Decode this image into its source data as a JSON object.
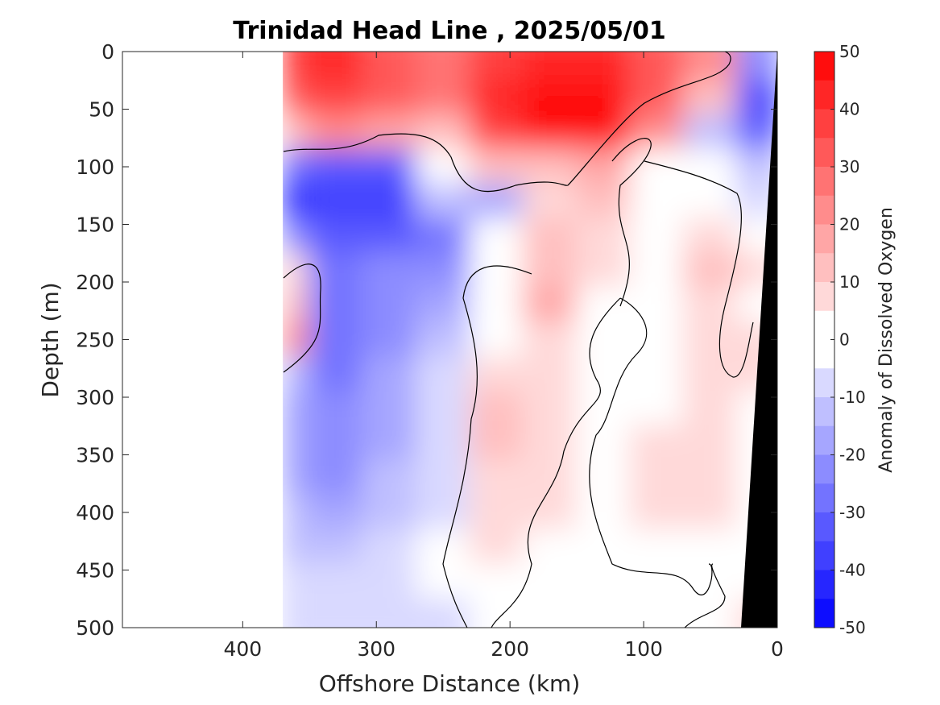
{
  "chart_data": {
    "type": "heatmap",
    "title": "Trinidad Head Line , 2025/05/01",
    "xlabel": "Offshore Distance (km)",
    "ylabel": "Depth (m)",
    "xlim": [
      490,
      0
    ],
    "ylim": [
      0,
      500
    ],
    "x_ticks": [
      "400",
      "300",
      "200",
      "100",
      "0"
    ],
    "x_tick_values": [
      400,
      300,
      200,
      100,
      0
    ],
    "y_ticks": [
      "0",
      "50",
      "100",
      "150",
      "200",
      "250",
      "300",
      "350",
      "400",
      "450",
      "500"
    ],
    "y_tick_values": [
      0,
      50,
      100,
      150,
      200,
      250,
      300,
      350,
      400,
      450,
      500
    ],
    "colorbar": {
      "label": "Anomaly of Dissolved Oxygen",
      "range": [
        -50,
        50
      ],
      "step": 5,
      "tick_labels": [
        "50",
        "40",
        "30",
        "20",
        "10",
        "0",
        "-10",
        "-20",
        "-30",
        "-40",
        "-50"
      ],
      "tick_values": [
        50,
        40,
        30,
        20,
        10,
        0,
        -10,
        -20,
        -30,
        -40,
        -50
      ],
      "color_negative": "#0000ff",
      "color_zero": "#ffffff",
      "color_positive": "#ff0000"
    },
    "data_coverage_km": [
      0,
      370
    ],
    "depth_km_grid": [
      370,
      330,
      290,
      250,
      210,
      170,
      130,
      90,
      50,
      10
    ],
    "depth_m_grid": [
      10,
      40,
      70,
      100,
      130,
      160,
      190,
      220,
      250,
      280,
      310,
      340,
      370,
      400,
      430,
      460,
      490
    ],
    "anomaly_grid": [
      [
        36,
        40,
        32,
        25,
        38,
        42,
        44,
        30,
        20,
        -20
      ],
      [
        33,
        35,
        30,
        25,
        40,
        45,
        46,
        32,
        10,
        -35
      ],
      [
        10,
        20,
        15,
        10,
        35,
        45,
        48,
        20,
        -10,
        -30
      ],
      [
        -25,
        -30,
        -30,
        0,
        10,
        12,
        15,
        0,
        0,
        -10
      ],
      [
        -40,
        -38,
        -35,
        -10,
        -15,
        5,
        10,
        0,
        0,
        -5
      ],
      [
        -20,
        -30,
        -30,
        -25,
        0,
        10,
        8,
        0,
        8,
        0
      ],
      [
        8,
        -25,
        -20,
        -20,
        0,
        12,
        5,
        0,
        10,
        5
      ],
      [
        12,
        -25,
        -20,
        -15,
        0,
        15,
        3,
        0,
        8,
        3
      ],
      [
        20,
        -25,
        -20,
        -10,
        0,
        8,
        3,
        0,
        5,
        5
      ],
      [
        -10,
        -25,
        -15,
        -5,
        5,
        5,
        0,
        -2,
        5,
        5
      ],
      [
        -15,
        -22,
        -15,
        -5,
        10,
        5,
        0,
        0,
        5,
        3
      ],
      [
        -15,
        -20,
        -15,
        -5,
        10,
        5,
        0,
        5,
        5,
        0
      ],
      [
        -15,
        -20,
        -10,
        -5,
        8,
        5,
        0,
        8,
        5,
        0
      ],
      [
        -10,
        -15,
        -10,
        -5,
        5,
        5,
        0,
        5,
        5,
        0
      ],
      [
        -10,
        -12,
        -5,
        0,
        5,
        3,
        0,
        0,
        0,
        0
      ],
      [
        -5,
        -8,
        -5,
        0,
        3,
        0,
        0,
        0,
        0,
        0
      ],
      [
        -5,
        -8,
        -5,
        -5,
        0,
        0,
        0,
        0,
        0,
        5
      ]
    ]
  }
}
